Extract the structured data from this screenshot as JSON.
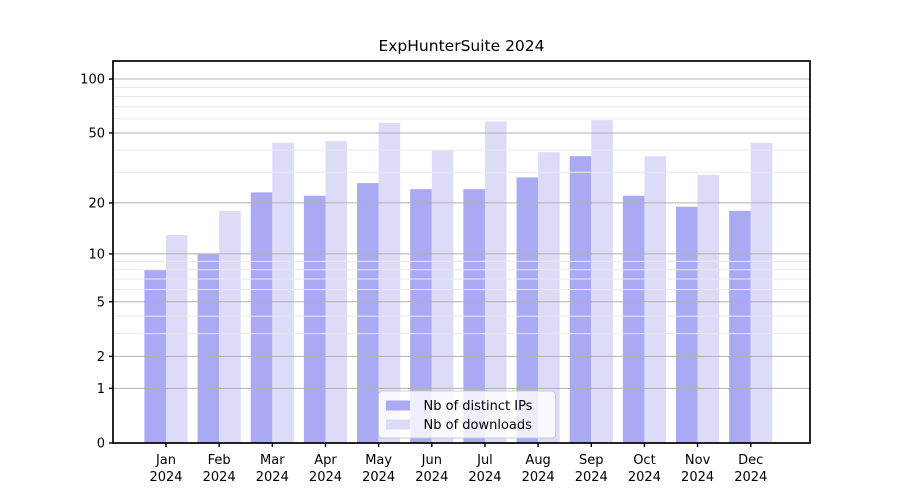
{
  "title": "ExpHunterSuite 2024",
  "chart_data": {
    "type": "bar",
    "title": "ExpHunterSuite 2024",
    "categories": [
      "Jan",
      "Feb",
      "Mar",
      "Apr",
      "May",
      "Jun",
      "Jul",
      "Aug",
      "Sep",
      "Oct",
      "Nov",
      "Dec"
    ],
    "category_year": "2024",
    "series": [
      {
        "name": "Nb of distinct IPs",
        "color": "#a9a9f4",
        "values": [
          8,
          10,
          23,
          22,
          26,
          24,
          24,
          28,
          37,
          22,
          19,
          18
        ]
      },
      {
        "name": "Nb of downloads",
        "color": "#dcdcf9",
        "values": [
          13,
          18,
          44,
          45,
          57,
          40,
          58,
          39,
          59,
          37,
          29,
          44
        ]
      }
    ],
    "yscale": "log1p",
    "yticks": [
      0,
      1,
      2,
      5,
      10,
      20,
      50,
      100
    ],
    "ytick_labels": [
      "0",
      "1",
      "2",
      "5",
      "10",
      "20",
      "50",
      "100"
    ],
    "yticks_minor": [
      3,
      4,
      6,
      7,
      8,
      9,
      30,
      40,
      60,
      70,
      80,
      90
    ],
    "ylim": [
      0,
      126
    ],
    "xlabel": "",
    "ylabel": "",
    "grid": true,
    "legend_position": "bottom-center"
  },
  "legend": {
    "items": [
      {
        "label": "Nb of distinct IPs",
        "color": "#a9a9f4"
      },
      {
        "label": "Nb of downloads",
        "color": "#dcdcf9"
      }
    ]
  },
  "colors": {
    "bar_ips": "#a9a9f4",
    "bar_downloads": "#dcdcf9",
    "grid_major": "#b0b0b0",
    "grid_minor": "#e9e9e9",
    "axis": "#000000",
    "legend_border": "#cccccc",
    "legend_bg": "rgba(255,255,255,0.8)",
    "background": "#ffffff"
  }
}
